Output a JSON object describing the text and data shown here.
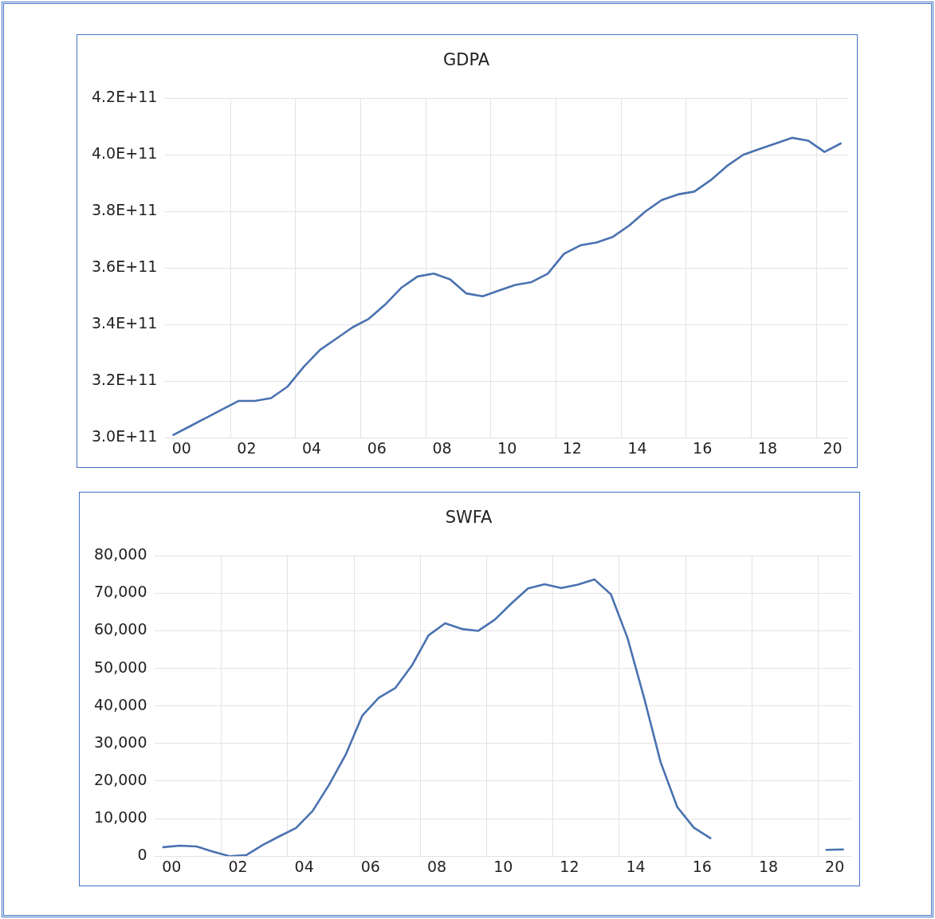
{
  "chart_data": [
    {
      "type": "line",
      "title": "GDPA",
      "marker": "none",
      "grid": true,
      "x": [
        -0.25,
        0.25,
        0.75,
        1.25,
        1.75,
        2.25,
        2.75,
        3.25,
        3.75,
        4.25,
        4.75,
        5.25,
        5.75,
        6.25,
        6.75,
        7.25,
        7.75,
        8.25,
        8.75,
        9.25,
        9.75,
        10.25,
        10.75,
        11.25,
        11.75,
        12.25,
        12.75,
        13.25,
        13.75,
        14.25,
        14.75,
        15.25,
        15.75,
        16.25,
        16.75,
        17.25,
        17.75,
        18.25,
        18.75,
        19.25,
        19.75,
        20.25
      ],
      "series": [
        {
          "color": "#4a72b0",
          "values": [
            301000000000,
            304000000000,
            307000000000,
            310000000000,
            313000000000,
            313000000000,
            314000000000,
            318000000000,
            325000000000,
            331000000000,
            335000000000,
            339000000000,
            342000000000,
            347000000000,
            353000000000,
            357000000000,
            358000000000,
            356000000000,
            351000000000,
            350000000000,
            352000000000,
            354000000000,
            355000000000,
            358000000000,
            365000000000,
            368000000000,
            369000000000,
            371000000000,
            375000000000,
            380000000000,
            384000000000,
            386000000000,
            387000000000,
            391000000000,
            396000000000,
            400000000000,
            402000000000,
            404000000000,
            406000000000,
            405000000000,
            401000000000,
            404000000000
          ]
        }
      ],
      "xlim": [
        -0.5,
        20.5
      ],
      "xticks": [
        {
          "value": 0,
          "label": "00"
        },
        {
          "value": 1.5,
          "label": null
        },
        {
          "value": 2,
          "label": "02"
        },
        {
          "value": 3.5,
          "label": null
        },
        {
          "value": 4,
          "label": "04"
        },
        {
          "value": 5.5,
          "label": null
        },
        {
          "value": 6,
          "label": "06"
        },
        {
          "value": 7.5,
          "label": null
        },
        {
          "value": 8,
          "label": "08"
        },
        {
          "value": 9.5,
          "label": null
        },
        {
          "value": 10,
          "label": "10"
        },
        {
          "value": 11.5,
          "label": null
        },
        {
          "value": 12,
          "label": "12"
        },
        {
          "value": 13.5,
          "label": null
        },
        {
          "value": 14,
          "label": "14"
        },
        {
          "value": 15.5,
          "label": null
        },
        {
          "value": 16,
          "label": "16"
        },
        {
          "value": 17.5,
          "label": null
        },
        {
          "value": 18,
          "label": "18"
        },
        {
          "value": 19.5,
          "label": null
        },
        {
          "value": 20,
          "label": "20"
        }
      ],
      "ylim": [
        300000000000,
        420000000000
      ],
      "yticks": [
        {
          "value": 300000000000,
          "label": "3.0E+11"
        },
        {
          "value": 320000000000,
          "label": "3.2E+11"
        },
        {
          "value": 340000000000,
          "label": "3.4E+11"
        },
        {
          "value": 360000000000,
          "label": "3.6E+11"
        },
        {
          "value": 380000000000,
          "label": "3.8E+11"
        },
        {
          "value": 400000000000,
          "label": "4.0E+11"
        },
        {
          "value": 420000000000,
          "label": "4.2E+11"
        }
      ]
    },
    {
      "type": "line",
      "title": "SWFA",
      "marker": "none",
      "grid": true,
      "x": [
        -0.25,
        0.25,
        0.75,
        1.25,
        1.75,
        2.25,
        2.75,
        3.25,
        3.75,
        4.25,
        4.75,
        5.25,
        5.75,
        6.25,
        6.75,
        7.25,
        7.75,
        8.25,
        8.75,
        9.25,
        9.75,
        10.25,
        10.75,
        11.25,
        11.75,
        12.25,
        12.75,
        13.25,
        13.75,
        14.25,
        14.75,
        15.25,
        15.75,
        16.25,
        16.75,
        17.25,
        17.75,
        18.25,
        18.75,
        19.25,
        19.75,
        20.25
      ],
      "series": [
        {
          "color": "#4a72b0",
          "values": [
            2400,
            2800,
            2600,
            1200,
            0,
            300,
            3000,
            5300,
            7500,
            12000,
            19000,
            27000,
            37400,
            42200,
            44800,
            50800,
            58800,
            62000,
            60500,
            60000,
            63000,
            67300,
            71300,
            72400,
            71400,
            72300,
            73700,
            69700,
            58100,
            42200,
            25000,
            13100,
            7600,
            4800,
            null,
            null,
            null,
            null,
            null,
            null,
            1700,
            1800
          ]
        }
      ],
      "xlim": [
        -0.5,
        20.5
      ],
      "xticks": [
        {
          "value": 0,
          "label": "00"
        },
        {
          "value": 1.5,
          "label": null
        },
        {
          "value": 2,
          "label": "02"
        },
        {
          "value": 3.5,
          "label": null
        },
        {
          "value": 4,
          "label": "04"
        },
        {
          "value": 5.5,
          "label": null
        },
        {
          "value": 6,
          "label": "06"
        },
        {
          "value": 7.5,
          "label": null
        },
        {
          "value": 8,
          "label": "08"
        },
        {
          "value": 9.5,
          "label": null
        },
        {
          "value": 10,
          "label": "10"
        },
        {
          "value": 11.5,
          "label": null
        },
        {
          "value": 12,
          "label": "12"
        },
        {
          "value": 13.5,
          "label": null
        },
        {
          "value": 14,
          "label": "14"
        },
        {
          "value": 15.5,
          "label": null
        },
        {
          "value": 16,
          "label": "16"
        },
        {
          "value": 17.5,
          "label": null
        },
        {
          "value": 18,
          "label": "18"
        },
        {
          "value": 19.5,
          "label": null
        },
        {
          "value": 20,
          "label": "20"
        }
      ],
      "ylim": [
        0,
        80000
      ],
      "yticks": [
        {
          "value": 0,
          "label": "0"
        },
        {
          "value": 10000,
          "label": "10,000"
        },
        {
          "value": 20000,
          "label": "20,000"
        },
        {
          "value": 30000,
          "label": "30,000"
        },
        {
          "value": 40000,
          "label": "40,000"
        },
        {
          "value": 50000,
          "label": "50,000"
        },
        {
          "value": 60000,
          "label": "60,000"
        },
        {
          "value": 70000,
          "label": "70,000"
        },
        {
          "value": 80000,
          "label": "80,000"
        }
      ]
    }
  ]
}
